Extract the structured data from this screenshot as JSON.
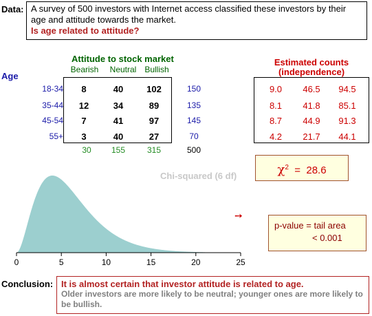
{
  "data_label": "Data:",
  "description": "A survey of 500 investors with Internet access classified these investors by their age and attitude towards the market.",
  "question": "Is age related to attitude?",
  "table": {
    "title": "Attitude to stock market",
    "row_header": "Age",
    "columns": [
      "Bearish",
      "Neutral",
      "Bullish"
    ],
    "rows": [
      {
        "label": "18-34",
        "values": [
          "8",
          "40",
          "102"
        ],
        "total": "150"
      },
      {
        "label": "35-44",
        "values": [
          "12",
          "34",
          "89"
        ],
        "total": "135"
      },
      {
        "label": "45-54",
        "values": [
          "7",
          "41",
          "97"
        ],
        "total": "145"
      },
      {
        "label": "55+",
        "values": [
          "3",
          "40",
          "27"
        ],
        "total": "70"
      }
    ],
    "col_totals": [
      "30",
      "155",
      "315"
    ],
    "grand_total": "500"
  },
  "estimated": {
    "title_line1": "Estimated counts",
    "title_line2": "(independence)",
    "rows": [
      [
        "9.0",
        "46.5",
        "94.5"
      ],
      [
        "8.1",
        "41.8",
        "85.1"
      ],
      [
        "8.7",
        "44.9",
        "91.3"
      ],
      [
        "4.2",
        "21.7",
        "44.1"
      ]
    ]
  },
  "chi": {
    "symbol": "χ",
    "sup": "2",
    "eq": "=",
    "value": "28.6"
  },
  "pvalue": {
    "line1": "p-value  =  tail area",
    "line2": "< 0.001"
  },
  "arrow": "➙",
  "chart_data": {
    "type": "area",
    "title": "Chi-squared (6 df)",
    "df": 6,
    "xlim": [
      0,
      25
    ],
    "x_ticks": [
      "0",
      "5",
      "10",
      "15",
      "20",
      "25"
    ],
    "fill_color": "#9ccfcf"
  },
  "conclusion": {
    "label": "Conclusion:",
    "line1": "It is almost certain that investor attitude is related to age.",
    "line2": "Older investors are more likely to be neutral; younger ones are more likely to be bullish."
  },
  "colors": {
    "green": "#006400",
    "red": "#cc0000",
    "blue": "#1a1aa8",
    "curve": "#9ccfcf"
  }
}
